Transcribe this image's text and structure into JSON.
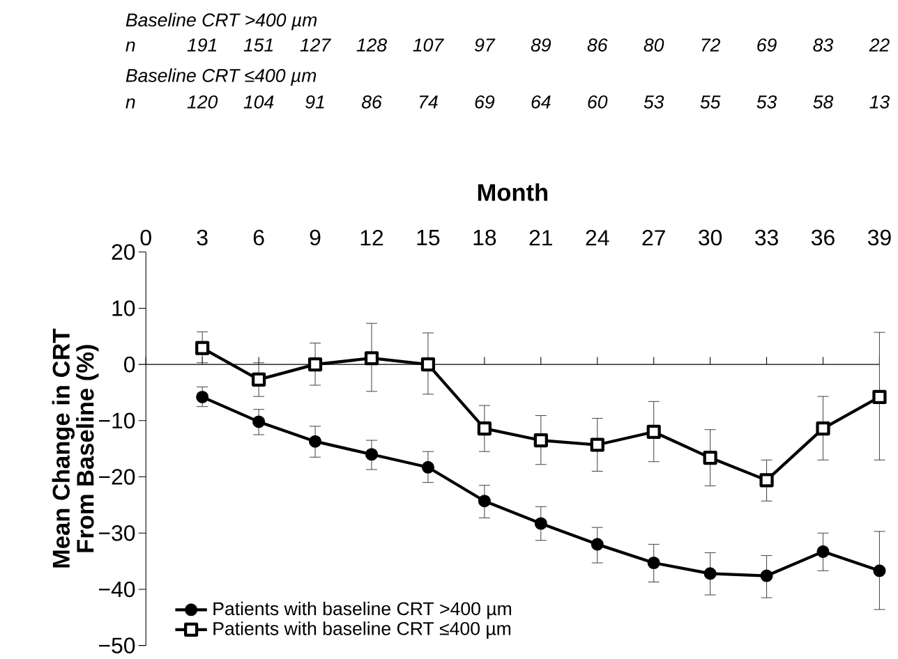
{
  "chart_data": {
    "type": "line",
    "xlabel": "Month",
    "ylabel": "Mean Change in CRT\nFrom Baseline (%)",
    "x": [
      3,
      6,
      9,
      12,
      15,
      18,
      21,
      24,
      27,
      30,
      33,
      36,
      39
    ],
    "xlim": [
      0,
      39
    ],
    "xticks": [
      0,
      3,
      6,
      9,
      12,
      15,
      18,
      21,
      24,
      27,
      30,
      33,
      36,
      39
    ],
    "ylim": [
      -50,
      20
    ],
    "yticks": [
      {
        "value": -50,
        "label": "−50"
      },
      {
        "value": -40,
        "label": "−40"
      },
      {
        "value": -30,
        "label": "−30"
      },
      {
        "value": -20,
        "label": "−20"
      },
      {
        "value": -10,
        "label": "−10"
      },
      0,
      10,
      20
    ],
    "series": [
      {
        "name": "Patients with baseline CRT >400 µm",
        "color": "#000000",
        "marker": "circle",
        "values": [
          -5.8,
          -10.2,
          -13.7,
          -16,
          -18.3,
          -24.3,
          -28.3,
          -32,
          -35.3,
          -37.2,
          -37.6,
          -33.3,
          -36.7
        ],
        "errors": [
          [
            -7.5,
            -4
          ],
          [
            -12.5,
            -8
          ],
          [
            -16.5,
            -11
          ],
          [
            -18.7,
            -13.5
          ],
          [
            -21,
            -15.5
          ],
          [
            -27.3,
            -21.5
          ],
          [
            -31.3,
            -25.3
          ],
          [
            -35.3,
            -29
          ],
          [
            -38.7,
            -32
          ],
          [
            -41,
            -33.5
          ],
          [
            -41.5,
            -34
          ],
          [
            -36.7,
            -30
          ],
          [
            -43.6,
            -29.7
          ]
        ]
      },
      {
        "name": "Patients with baseline CRT ≤400 µm",
        "color": "#000000",
        "marker": "square",
        "values": [
          2.9,
          -2.7,
          0,
          1.1,
          0,
          -11.4,
          -13.5,
          -14.3,
          -12,
          -16.6,
          -20.6,
          -11.4,
          -5.8
        ],
        "errors": [
          [
            0.3,
            5.8
          ],
          [
            -5.7,
            0.3
          ],
          [
            -3.7,
            3.8
          ],
          [
            -4.8,
            7.3
          ],
          [
            -5.3,
            5.6
          ],
          [
            -15.5,
            -7.3
          ],
          [
            -17.8,
            -9.1
          ],
          [
            -19,
            -9.6
          ],
          [
            -17.3,
            -6.6
          ],
          [
            -21.6,
            -11.6
          ],
          [
            -24.3,
            -17
          ],
          [
            -17,
            -5.7
          ],
          [
            -17,
            5.7
          ]
        ]
      }
    ],
    "legend": "bottom left",
    "annotations": [
      "Baseline CRT >400 µm",
      "n",
      "191",
      "151",
      "127",
      "128",
      "107",
      "97",
      "89",
      "86",
      "80",
      "72",
      "69",
      "83",
      "22",
      "Baseline CRT ≤400 µm",
      "n",
      "120",
      "104",
      "91",
      "86",
      "74",
      "69",
      "64",
      "60",
      "53",
      "55",
      "53",
      "58",
      "13"
    ]
  }
}
